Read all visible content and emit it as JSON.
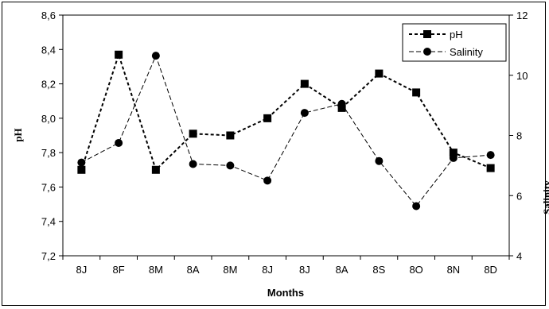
{
  "chart_data": {
    "type": "line",
    "categories": [
      "8J",
      "8F",
      "8M",
      "8A",
      "8M",
      "8J",
      "8J",
      "8A",
      "8S",
      "8O",
      "8N",
      "8D"
    ],
    "xlabel": "Months",
    "ylabel": "pH",
    "y2label": "Salinity",
    "ylim": [
      7.2,
      8.6
    ],
    "y2lim": [
      4,
      12
    ],
    "yticks": [
      "7,2",
      "7,4",
      "7,6",
      "7,8",
      "8,0",
      "8,2",
      "8,4",
      "8,6"
    ],
    "y2ticks": [
      "4",
      "6",
      "8",
      "10",
      "12"
    ],
    "grid": false,
    "legend_position": "top-right",
    "series": [
      {
        "name": "pH",
        "axis": "left",
        "marker": "square",
        "values": [
          7.7,
          8.37,
          7.7,
          7.91,
          7.9,
          8.0,
          8.2,
          8.06,
          8.26,
          8.15,
          7.8,
          7.71
        ],
        "color": "#000000"
      },
      {
        "name": "Salinity",
        "axis": "right",
        "marker": "circle",
        "values": [
          7.1,
          7.75,
          10.65,
          7.05,
          7.0,
          6.5,
          8.75,
          9.05,
          7.15,
          5.65,
          7.25,
          7.35
        ],
        "color": "#000000"
      }
    ]
  }
}
